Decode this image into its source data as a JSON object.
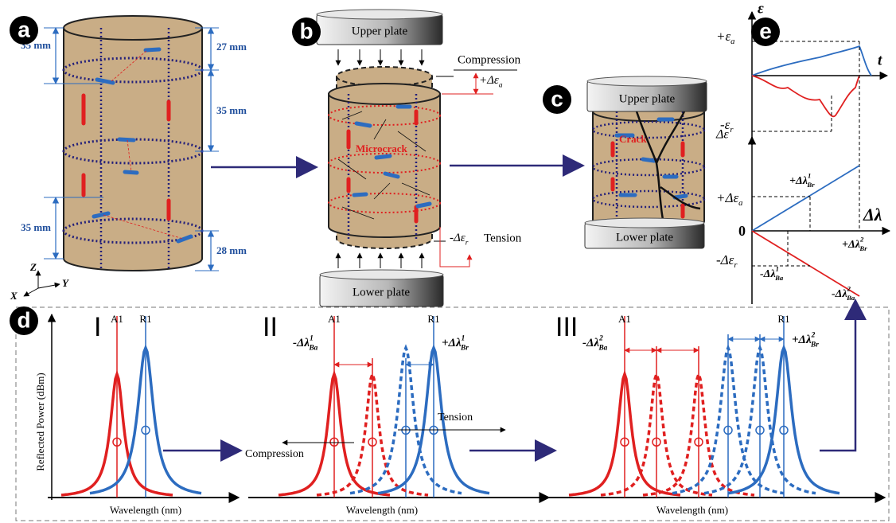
{
  "panel_labels": [
    "a",
    "b",
    "c",
    "d",
    "e"
  ],
  "panel_a": {
    "dimensions_left": [
      "35 mm",
      "35 mm"
    ],
    "dimensions_right": [
      "27 mm",
      "35 mm",
      "28 mm"
    ],
    "axes": {
      "z": "Z",
      "y": "Y",
      "x": "X"
    }
  },
  "panel_b": {
    "upper_plate": "Upper plate",
    "compression": "Compression",
    "axial_strain": {
      "base": "+Δε",
      "sub": "a"
    },
    "microcrack": "Microcrack",
    "radial_strain": {
      "base": "-Δε",
      "sub": "r"
    },
    "tension": "Tension",
    "lower_plate": "Lower plate"
  },
  "panel_c": {
    "upper_plate": "Upper plate",
    "crack": "Crack",
    "lower_plate": "Lower plate"
  },
  "panel_d": {
    "y_axis_label": "Reflected Power (dBm)",
    "stages": [
      {
        "numeral": "I",
        "labels": [
          "A1",
          "R1"
        ],
        "x_axis_label": "Wavelength (nm)"
      },
      {
        "numeral": "II",
        "labels": [
          "A1",
          "R1"
        ],
        "shift_a": {
          "base": "-Δλ",
          "sup": "1",
          "sub": "Ba"
        },
        "shift_r": {
          "base": "+Δλ",
          "sup": "1",
          "sub": "Br"
        },
        "tension": "Tension",
        "compression": "Compression",
        "x_axis_label": "Wavelength (nm)"
      },
      {
        "numeral": "III",
        "labels": [
          "A1",
          "R1"
        ],
        "shift_a": {
          "base": "-Δλ",
          "sup": "2",
          "sub": "Ba"
        },
        "shift_r": {
          "base": "+Δλ",
          "sup": "2",
          "sub": "Br"
        },
        "x_axis_label": "Wavelength (nm)"
      }
    ]
  },
  "panel_e": {
    "strain_axis": "ε",
    "time_axis": "t",
    "peak_axial": {
      "base": "+ε",
      "sub": "a"
    },
    "peak_radial": {
      "base": "-ε",
      "sub": "r"
    },
    "delta_strain_axis": "Δε",
    "delta_axial": {
      "base": "+Δε",
      "sub": "a"
    },
    "origin": "0",
    "delta_radial": {
      "base": "-Δε",
      "sub": "r"
    },
    "shift_axis": "Δλ",
    "br1": {
      "base": "+Δλ",
      "sup": "1",
      "sub": "Br"
    },
    "br2": {
      "base": "+Δλ",
      "sup": "2",
      "sub": "Br"
    },
    "ba1": {
      "base": "-Δλ",
      "sup": "1",
      "sub": "Ba"
    },
    "ba2": {
      "base": "-Δλ",
      "sup": "2",
      "sub": "Ba"
    }
  }
}
